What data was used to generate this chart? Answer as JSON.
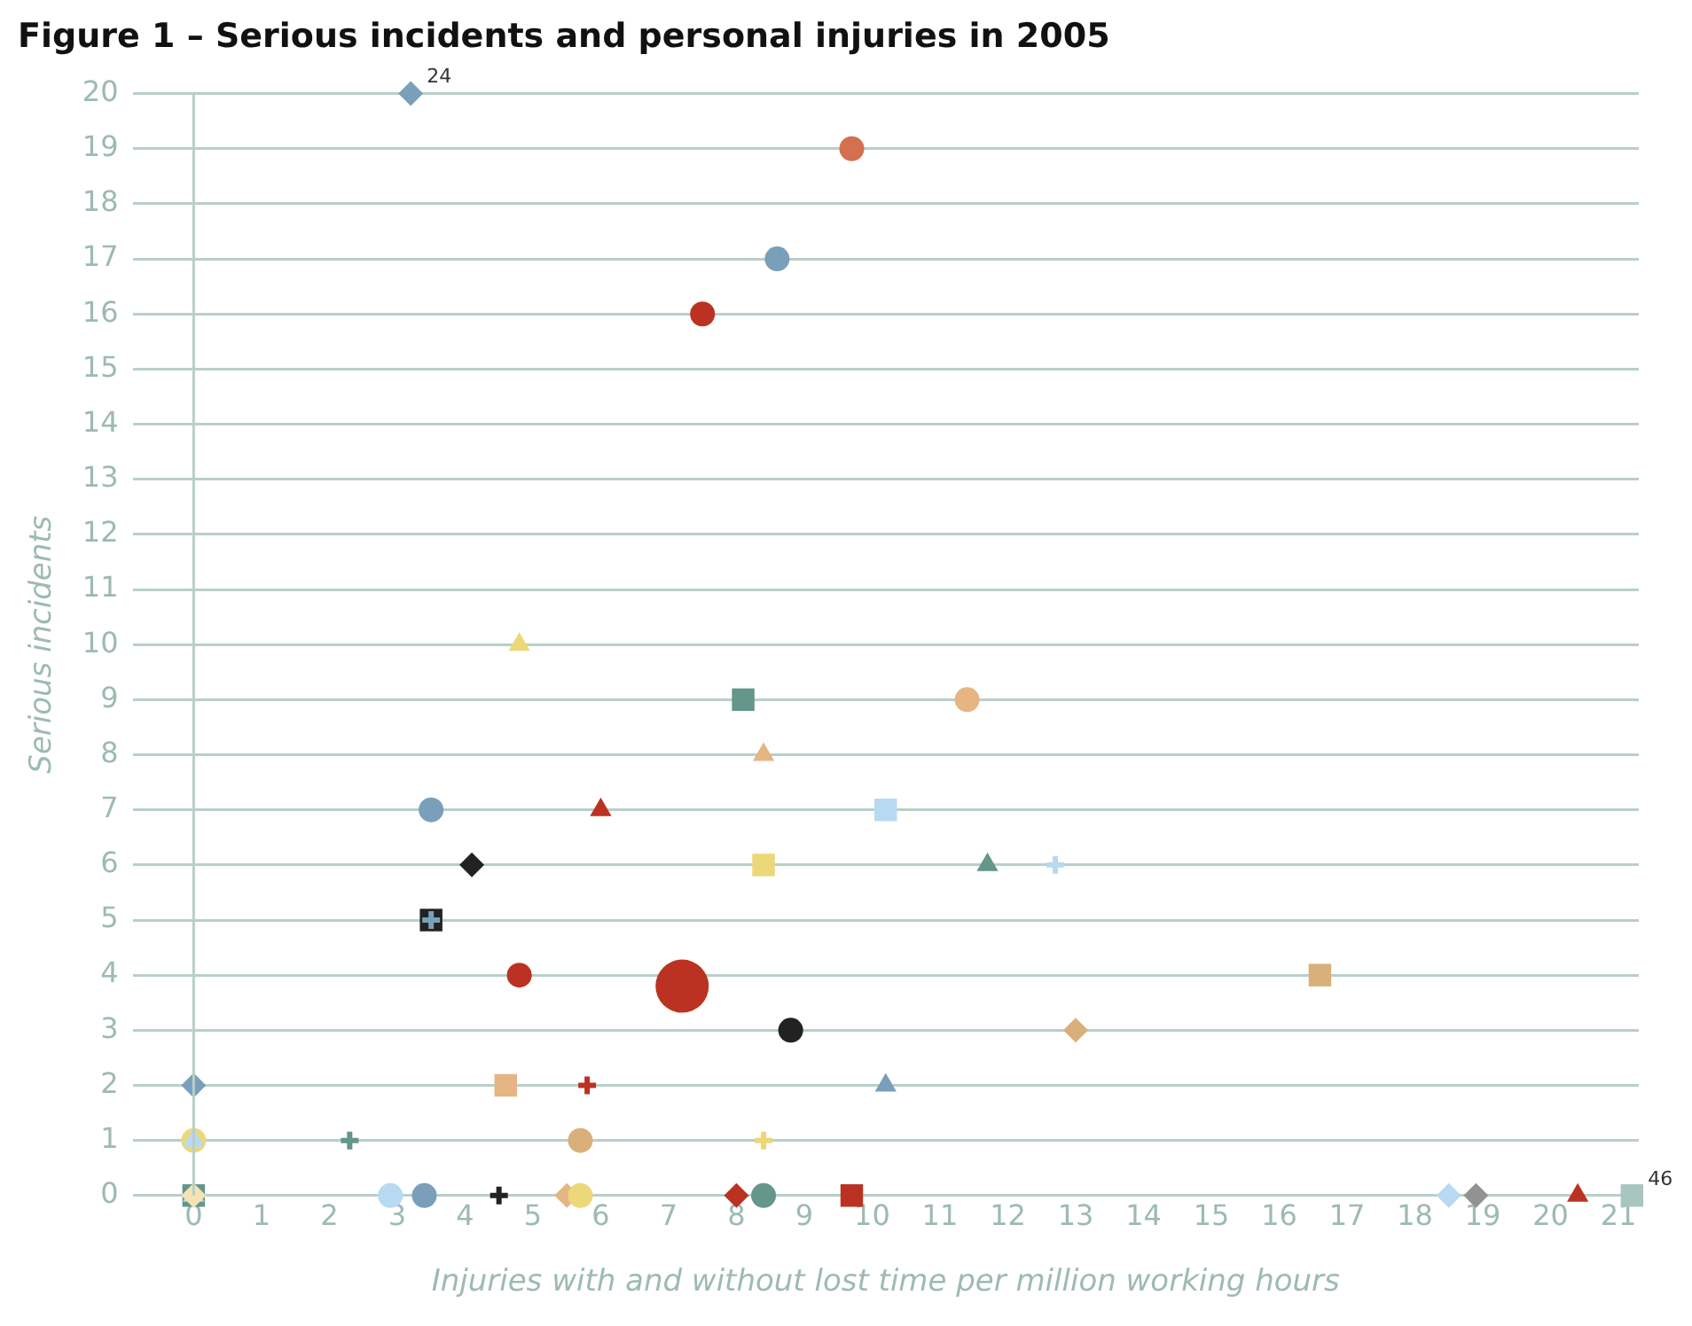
{
  "chart_data": {
    "type": "scatter",
    "title": "Figure 1 – Serious incidents and personal injuries in 2005",
    "xlabel": "Injuries with and without lost time per million working hours",
    "ylabel": "Serious incidents",
    "xlim": [
      -0.9,
      21.3
    ],
    "xticks": [
      0,
      1,
      2,
      3,
      4,
      5,
      6,
      7,
      8,
      9,
      10,
      11,
      12,
      13,
      14,
      15,
      16,
      17,
      18,
      19,
      20,
      21
    ],
    "ylim": [
      0,
      20
    ],
    "yticks": [
      0,
      1,
      2,
      3,
      4,
      5,
      6,
      7,
      8,
      9,
      10,
      11,
      12,
      13,
      14,
      15,
      16,
      17,
      18,
      19,
      20
    ],
    "grid": "y",
    "legend": false,
    "ref_lines": [
      {
        "axis": "x",
        "value": 0,
        "color": "#b9cfca"
      }
    ],
    "annotations": [
      {
        "text": "24",
        "x": 3.2,
        "y": 20
      },
      {
        "text": "46",
        "x": 21.2,
        "y": 0
      }
    ],
    "series": [
      {
        "color": "#7a9fba",
        "marker": "diamond",
        "x": [
          3.2
        ],
        "values": [
          20
        ]
      },
      {
        "color": "#d4704f",
        "marker": "circle",
        "x": [
          9.7
        ],
        "values": [
          19
        ]
      },
      {
        "color": "#7a9fba",
        "marker": "circle",
        "x": [
          8.6
        ],
        "values": [
          17
        ]
      },
      {
        "color": "#bb3222",
        "marker": "circle",
        "x": [
          7.5
        ],
        "values": [
          16
        ]
      },
      {
        "color": "#ecd878",
        "marker": "triangle",
        "x": [
          4.8
        ],
        "values": [
          10
        ]
      },
      {
        "color": "#64968a",
        "marker": "square",
        "x": [
          8.1
        ],
        "values": [
          9
        ]
      },
      {
        "color": "#e5b583",
        "marker": "circle",
        "x": [
          11.4
        ],
        "values": [
          9
        ]
      },
      {
        "color": "#e5b583",
        "marker": "triangle",
        "x": [
          8.4
        ],
        "values": [
          8
        ]
      },
      {
        "color": "#7a9fba",
        "marker": "circle",
        "x": [
          3.5
        ],
        "values": [
          7
        ]
      },
      {
        "color": "#bb3222",
        "marker": "triangle",
        "x": [
          6.0
        ],
        "values": [
          7
        ]
      },
      {
        "color": "#b8d9f2",
        "marker": "square",
        "x": [
          10.2
        ],
        "values": [
          7
        ]
      },
      {
        "color": "#222222",
        "marker": "diamond",
        "x": [
          4.1
        ],
        "values": [
          6
        ]
      },
      {
        "color": "#ecd878",
        "marker": "square",
        "x": [
          8.4
        ],
        "values": [
          6
        ]
      },
      {
        "color": "#64968a",
        "marker": "triangle",
        "x": [
          11.7
        ],
        "values": [
          6
        ]
      },
      {
        "color": "#b8d9f2",
        "marker": "cross",
        "x": [
          12.7
        ],
        "values": [
          6
        ]
      },
      {
        "color": "#222222",
        "marker": "square",
        "x": [
          3.5
        ],
        "values": [
          5
        ]
      },
      {
        "color": "#7a9fba",
        "marker": "cross",
        "x": [
          3.5
        ],
        "values": [
          5
        ]
      },
      {
        "color": "#bb3222",
        "marker": "circle",
        "x": [
          4.8
        ],
        "values": [
          4
        ]
      },
      {
        "type": "bubble",
        "color": "#bb3222",
        "marker": "circle",
        "x": [
          7.2
        ],
        "values": [
          3.8
        ],
        "sizes": [
          1
        ]
      },
      {
        "color": "#d9b079",
        "marker": "square",
        "x": [
          16.6
        ],
        "values": [
          4
        ]
      },
      {
        "color": "#222222",
        "marker": "circle",
        "x": [
          8.8
        ],
        "values": [
          3
        ]
      },
      {
        "color": "#d9b079",
        "marker": "diamond",
        "x": [
          13.0
        ],
        "values": [
          3
        ]
      },
      {
        "color": "#7a9fba",
        "marker": "diamond",
        "x": [
          0
        ],
        "values": [
          2
        ]
      },
      {
        "color": "#e5b583",
        "marker": "square",
        "x": [
          4.6
        ],
        "values": [
          2
        ]
      },
      {
        "color": "#bb3222",
        "marker": "cross",
        "x": [
          5.8
        ],
        "values": [
          2
        ]
      },
      {
        "color": "#7a9fba",
        "marker": "triangle",
        "x": [
          10.2
        ],
        "values": [
          2
        ]
      },
      {
        "color": "#ecd878",
        "marker": "circle",
        "x": [
          0
        ],
        "values": [
          1
        ]
      },
      {
        "color": "#b8d9f2",
        "marker": "triangle",
        "x": [
          0
        ],
        "values": [
          1
        ]
      },
      {
        "color": "#64968a",
        "marker": "cross",
        "x": [
          2.3
        ],
        "values": [
          1
        ]
      },
      {
        "color": "#d9b079",
        "marker": "circle",
        "x": [
          5.7
        ],
        "values": [
          1
        ]
      },
      {
        "color": "#ecd878",
        "marker": "cross",
        "x": [
          8.4
        ],
        "values": [
          1
        ]
      },
      {
        "color": "#64968a",
        "marker": "square",
        "x": [
          0
        ],
        "values": [
          0
        ]
      },
      {
        "color": "#b8d9f2",
        "marker": "triangle",
        "x": [
          0
        ],
        "values": [
          0
        ]
      },
      {
        "color": "#f5e3b3",
        "marker": "diamond",
        "x": [
          0
        ],
        "values": [
          0
        ]
      },
      {
        "color": "#b8d9f2",
        "marker": "circle",
        "x": [
          2.9
        ],
        "values": [
          0
        ]
      },
      {
        "color": "#7a9fba",
        "marker": "circle",
        "x": [
          3.4
        ],
        "values": [
          0
        ]
      },
      {
        "color": "#222222",
        "marker": "cross",
        "x": [
          4.5
        ],
        "values": [
          0
        ]
      },
      {
        "color": "#e5b583",
        "marker": "diamond",
        "x": [
          5.5
        ],
        "values": [
          0
        ]
      },
      {
        "color": "#ecd878",
        "marker": "circle",
        "x": [
          5.7
        ],
        "values": [
          0
        ]
      },
      {
        "color": "#bb3222",
        "marker": "diamond",
        "x": [
          8.0
        ],
        "values": [
          0
        ]
      },
      {
        "color": "#64968a",
        "marker": "circle",
        "x": [
          8.4
        ],
        "values": [
          0
        ]
      },
      {
        "color": "#bb3222",
        "marker": "square",
        "x": [
          9.7
        ],
        "values": [
          0
        ]
      },
      {
        "color": "#b8d9f2",
        "marker": "diamond",
        "x": [
          18.5
        ],
        "values": [
          0
        ]
      },
      {
        "color": "#929292",
        "marker": "diamond",
        "x": [
          18.9
        ],
        "values": [
          0
        ]
      },
      {
        "color": "#bb3222",
        "marker": "triangle",
        "x": [
          20.4
        ],
        "values": [
          0
        ]
      },
      {
        "color": "#a9c5bf",
        "marker": "square",
        "x": [
          21.2
        ],
        "values": [
          0
        ]
      }
    ]
  }
}
